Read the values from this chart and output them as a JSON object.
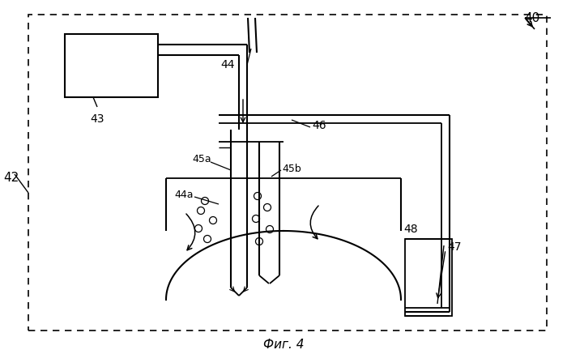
{
  "title": "Фиг. 4",
  "label_40": "40",
  "label_42": "42",
  "label_43": "43",
  "label_44": "44",
  "label_44a": "44а",
  "label_45a": "45а",
  "label_45b": "45b",
  "label_46": "46",
  "label_47": "47",
  "label_48": "48",
  "bg_color": "#ffffff",
  "line_color": "#000000"
}
